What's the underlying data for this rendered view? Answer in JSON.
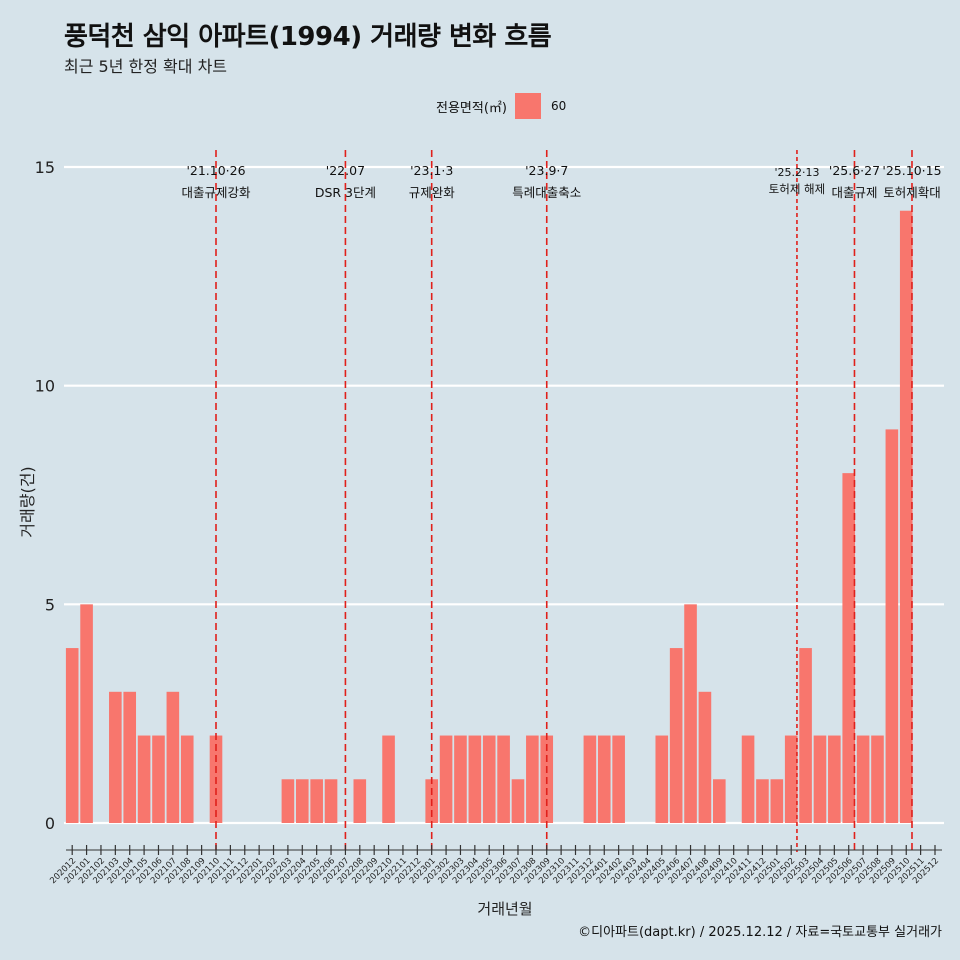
{
  "header": {
    "title": "풍덕천 삼익 아파트(1994) 거래량 변화 흐름",
    "subtitle": "최근 5년 한정 확대 차트"
  },
  "legend": {
    "title": "전용면적(㎡)",
    "label": "60",
    "color": "#f8766d"
  },
  "caption": "©디아파트(dapt.kr) / 2025.12.12 / 자료=국토교통부 실거래가",
  "colors": {
    "background": "#d6e3ea",
    "bar": "#f8766d",
    "event_line": "#e0201b",
    "grid": "#ffffff"
  },
  "chart_data": {
    "type": "bar",
    "title": "풍덕천 삼익 아파트(1994) 거래량 변화 흐름",
    "xlabel": "거래년월",
    "ylabel": "거래량(건)",
    "ylim": [
      -0.6,
      15.5
    ],
    "yticks": [
      0,
      5,
      10,
      15
    ],
    "categories": [
      "202012",
      "202101",
      "202102",
      "202103",
      "202104",
      "202105",
      "202106",
      "202107",
      "202108",
      "202109",
      "202110",
      "202111",
      "202112",
      "202201",
      "202202",
      "202203",
      "202204",
      "202205",
      "202206",
      "202207",
      "202208",
      "202209",
      "202210",
      "202211",
      "202212",
      "202301",
      "202302",
      "202303",
      "202304",
      "202305",
      "202306",
      "202307",
      "202308",
      "202309",
      "202310",
      "202311",
      "202312",
      "202401",
      "202402",
      "202403",
      "202404",
      "202405",
      "202406",
      "202407",
      "202408",
      "202409",
      "202410",
      "202411",
      "202412",
      "202501",
      "202502",
      "202503",
      "202504",
      "202505",
      "202506",
      "202507",
      "202508",
      "202509",
      "202510",
      "202511",
      "202512"
    ],
    "series": [
      {
        "name": "60",
        "values": [
          4,
          5,
          0,
          3,
          3,
          2,
          2,
          3,
          2,
          0,
          2,
          0,
          0,
          0,
          0,
          1,
          1,
          1,
          1,
          0,
          1,
          0,
          2,
          0,
          0,
          1,
          2,
          2,
          2,
          2,
          2,
          1,
          2,
          2,
          0,
          0,
          2,
          2,
          2,
          0,
          0,
          2,
          4,
          5,
          3,
          1,
          0,
          2,
          1,
          1,
          2,
          4,
          2,
          2,
          8,
          2,
          2,
          9,
          14,
          0,
          0
        ]
      }
    ],
    "events": [
      {
        "date": "'21.10·26",
        "label": "대출규제강화",
        "index": 10.0,
        "dash": "long"
      },
      {
        "date": "'22.07",
        "label": "DSR 3단계",
        "index": 19.0,
        "dash": "long"
      },
      {
        "date": "'23.1·3",
        "label": "규제완화",
        "index": 25.0,
        "dash": "long"
      },
      {
        "date": "'23.9·7",
        "label": "특례대출축소",
        "index": 33.0,
        "dash": "long"
      },
      {
        "date": "'25.2·13",
        "label": "토허제 해제",
        "index": 50.4,
        "dash": "short"
      },
      {
        "date": "'25.6·27",
        "label": "대출규제",
        "index": 54.4,
        "dash": "long"
      },
      {
        "date": "'25.10·15",
        "label": "토허제확대",
        "index": 58.4,
        "dash": "long"
      }
    ]
  }
}
